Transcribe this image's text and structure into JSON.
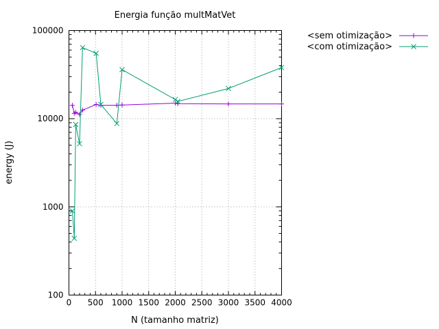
{
  "chart_data": {
    "type": "line",
    "title": "Energia função multMatVet",
    "xlabel": "N (tamanho matriz)",
    "ylabel": "energy (J)",
    "xlim": [
      0,
      4000
    ],
    "ylim": [
      100,
      100000
    ],
    "yscale": "log",
    "grid": true,
    "legend_position": "outside-right",
    "x_ticks": [
      0,
      500,
      1000,
      1500,
      2000,
      2500,
      3000,
      3500,
      4000
    ],
    "x_tick_labels": [
      "0",
      "500",
      "1000",
      "1500",
      "2000",
      "2500",
      "3000",
      "3500",
      "4000"
    ],
    "y_ticks": [
      100,
      1000,
      10000,
      100000
    ],
    "y_tick_labels": [
      "100",
      "1000",
      "10000",
      "100000"
    ],
    "series": [
      {
        "name": "<sem otimização>",
        "color": "#9400d3",
        "marker": "plus",
        "x": [
          64,
          100,
          128,
          200,
          256,
          512,
          600,
          900,
          1000,
          2000,
          2048,
          3000,
          4000
        ],
        "y": [
          14200,
          11500,
          11800,
          11200,
          12500,
          14500,
          14200,
          14200,
          14300,
          15000,
          14800,
          14700,
          14700
        ]
      },
      {
        "name": "<com otimização>",
        "color": "#009e73",
        "marker": "cross",
        "x": [
          64,
          100,
          128,
          200,
          256,
          512,
          600,
          900,
          1000,
          2000,
          2048,
          3000,
          4000
        ],
        "y": [
          900,
          440,
          8600,
          5200,
          64000,
          55000,
          14500,
          8800,
          36000,
          16500,
          15700,
          22000,
          38000
        ]
      }
    ]
  }
}
